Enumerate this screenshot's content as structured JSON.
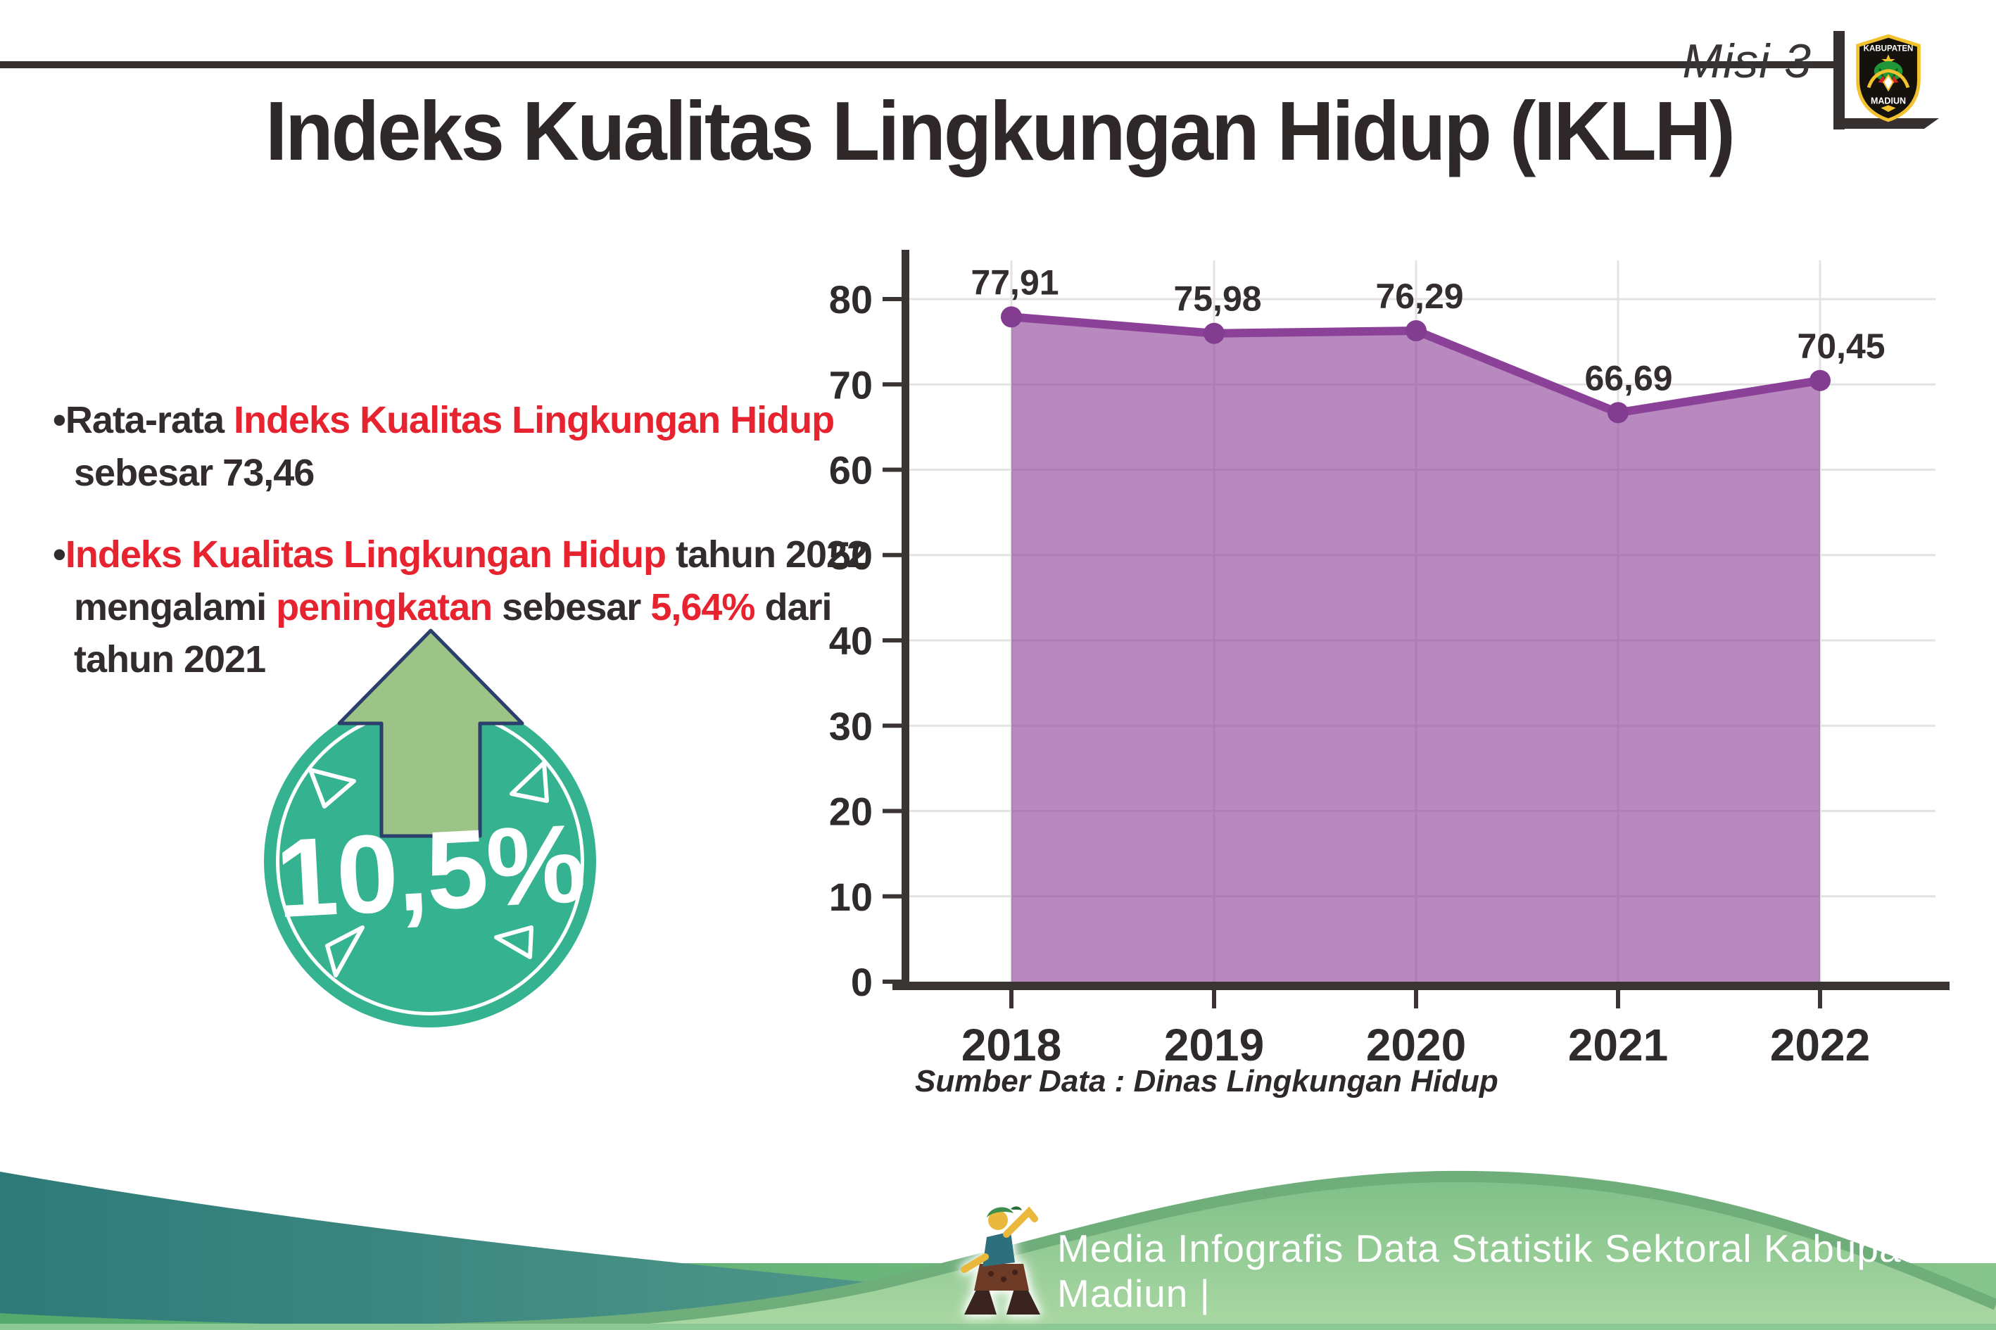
{
  "header": {
    "misi": "Misi 3",
    "title": "Indeks Kualitas Lingkungan Hidup (IKLH)",
    "logo": {
      "top": "KABUPATEN",
      "bottom": "MADIUN"
    }
  },
  "bullet_marker": "•",
  "bullets": [
    {
      "lines": [
        [
          {
            "t": "Rata-rata ",
            "c": "dark"
          },
          {
            "t": "Indeks Kualitas Lingkungan Hidup",
            "c": "red"
          }
        ],
        [
          {
            "t": "sebesar 73,46",
            "c": "dark"
          }
        ]
      ]
    },
    {
      "lines": [
        [
          {
            "t": "Indeks Kualitas Lingkungan Hidup",
            "c": "red"
          },
          {
            "t": " tahun 2022",
            "c": "dark"
          }
        ],
        [
          {
            "t": "mengalami ",
            "c": "dark"
          },
          {
            "t": "peningkatan",
            "c": "red"
          },
          {
            "t": " sebesar ",
            "c": "dark"
          },
          {
            "t": "5,64%",
            "c": "red"
          },
          {
            "t": " dari",
            "c": "dark"
          }
        ],
        [
          {
            "t": "tahun 2021",
            "c": "dark"
          }
        ]
      ]
    }
  ],
  "badge": {
    "value": "10,5%"
  },
  "chart_data": {
    "type": "area",
    "categories": [
      "2018",
      "2019",
      "2020",
      "2021",
      "2022"
    ],
    "values": [
      77.91,
      75.98,
      76.29,
      66.69,
      70.45
    ],
    "value_labels": [
      "77,91",
      "75,98",
      "76,29",
      "66,69",
      "70,45"
    ],
    "title": "",
    "xlabel": "",
    "ylabel": "",
    "ylim": [
      0,
      80
    ],
    "ytick_step": 10,
    "grid": true,
    "legend_position": "none"
  },
  "source_caption": "Sumber Data : Dinas Lingkungan Hidup",
  "footer": {
    "caption": "Media Infografis Data Statistik Sektoral Kabupaten Madiun |"
  },
  "colors": {
    "accent_red": "#e6232e",
    "text_dark": "#332c2d",
    "chart_line": "#8c4198",
    "chart_dot": "#833d90",
    "chart_fill": "rgba(140,65,152,0.62)",
    "gridline": "#e4e2e2",
    "axis": "#3a3432",
    "badge_teal": "#35b28f",
    "arrow_green": "#9cc487",
    "arrow_outline": "#2c3e6b",
    "footer_teal_dark": "#2d7a79",
    "footer_teal_light": "#5fa690",
    "footer_green_base": "#55a96c",
    "dome_green_light": "#abd8a3",
    "dome_rim": "#6fae7a"
  }
}
